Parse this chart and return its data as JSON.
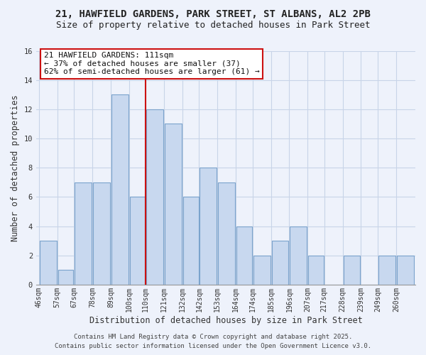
{
  "title_line1": "21, HAWFIELD GARDENS, PARK STREET, ST ALBANS, AL2 2PB",
  "title_line2": "Size of property relative to detached houses in Park Street",
  "xlabel": "Distribution of detached houses by size in Park Street",
  "ylabel": "Number of detached properties",
  "bin_edges": [
    46,
    57,
    67,
    78,
    89,
    100,
    110,
    121,
    132,
    142,
    153,
    164,
    174,
    185,
    196,
    207,
    217,
    228,
    239,
    249,
    260
  ],
  "bin_labels": [
    "46sqm",
    "57sqm",
    "67sqm",
    "78sqm",
    "89sqm",
    "100sqm",
    "110sqm",
    "121sqm",
    "132sqm",
    "142sqm",
    "153sqm",
    "164sqm",
    "174sqm",
    "185sqm",
    "196sqm",
    "207sqm",
    "217sqm",
    "228sqm",
    "239sqm",
    "249sqm",
    "260sqm"
  ],
  "bar_values": [
    3,
    1,
    7,
    7,
    13,
    6,
    12,
    11,
    6,
    8,
    7,
    4,
    2,
    3,
    4,
    2,
    0,
    2,
    0,
    2,
    2
  ],
  "bar_color": "#c8d8ef",
  "bar_edgecolor": "#7ba3cc",
  "grid_color": "#c8d4e8",
  "background_color": "#eef2fb",
  "vline_x_index": 6,
  "vline_color": "#cc1111",
  "annotation_title": "21 HAWFIELD GARDENS: 111sqm",
  "annotation_line1": "← 37% of detached houses are smaller (37)",
  "annotation_line2": "62% of semi-detached houses are larger (61) →",
  "annotation_box_edgecolor": "#cc1111",
  "annotation_box_facecolor": "#ffffff",
  "ylim": [
    0,
    16
  ],
  "yticks": [
    0,
    2,
    4,
    6,
    8,
    10,
    12,
    14,
    16
  ],
  "footer_line1": "Contains HM Land Registry data © Crown copyright and database right 2025.",
  "footer_line2": "Contains public sector information licensed under the Open Government Licence v3.0.",
  "title_fontsize": 10,
  "subtitle_fontsize": 9,
  "axis_label_fontsize": 8.5,
  "tick_fontsize": 7,
  "annotation_fontsize": 8,
  "footer_fontsize": 6.5
}
